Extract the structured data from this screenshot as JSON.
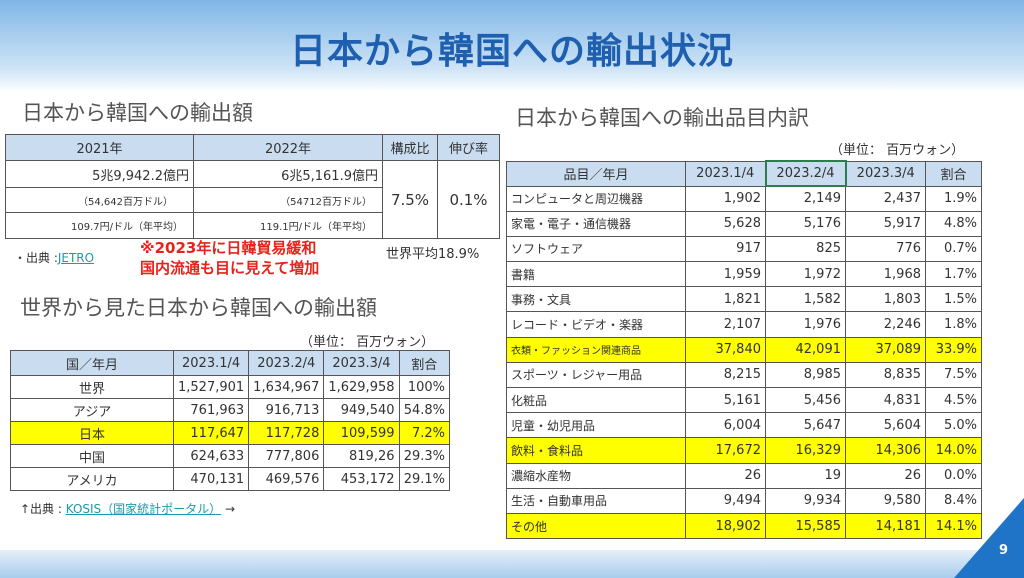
{
  "title": "日本から韓国への輸出状況",
  "page_number": "9",
  "colors": {
    "title": "#1f5fb0",
    "highlight": "#ffff00",
    "header": "#c9dcf0",
    "note": "#e8221b"
  },
  "export_amount": {
    "heading": "日本から韓国への輸出額",
    "headers": [
      "2021年",
      "2022年",
      "構成比",
      "伸び率"
    ],
    "rows": [
      [
        "5兆9,942.2億円",
        "6兆5,161.9億円"
      ],
      [
        "（54,642百万ドル）",
        "（54712百万ドル）"
      ],
      [
        "109.7円/ドル（年平均）",
        "119.1円/ドル（年平均）"
      ]
    ],
    "composition": "7.5%",
    "growth": "0.1%",
    "source_prefix": "・出典 :",
    "source_link": "JETRO",
    "world_average": "世界平均18.9%",
    "note_lines": [
      "※2023年に日韓貿易緩和",
      "国内流通も目に見えて増加"
    ]
  },
  "world_view": {
    "heading": "世界から見た日本から韓国への輸出額",
    "unit": "（単位： 百万ウォン）",
    "headers": [
      "国／年月",
      "2023.1/4",
      "2023.2/4",
      "2023.3/4",
      "割合"
    ],
    "rows": [
      {
        "cells": [
          "世界",
          "1,527,901",
          "1,634,967",
          "1,629,958",
          "100%"
        ]
      },
      {
        "cells": [
          "アジア",
          "761,963",
          "916,713",
          "949,540",
          "54.8%"
        ]
      },
      {
        "cells": [
          "日本",
          "117,647",
          "117,728",
          "109,599",
          "7.2%"
        ],
        "highlight": true
      },
      {
        "cells": [
          "中国",
          "624,633",
          "777,806",
          "819,26",
          "29.3%"
        ]
      },
      {
        "cells": [
          "アメリカ",
          "470,131",
          "469,576",
          "453,172",
          "29.1%"
        ]
      }
    ],
    "source_prefix": "↑出典 : ",
    "source_link": "KOSIS（国家統計ポータル）",
    "source_suffix": " →"
  },
  "items": {
    "heading": "日本から韓国への輸出品目内訳",
    "unit": "（単位： 百万ウォン）",
    "headers": [
      "品目／年月",
      "2023.1/4",
      "2023.2/4",
      "2023.3/4",
      "割合"
    ],
    "rows": [
      {
        "cells": [
          "コンピュータと周辺機器",
          "1,902",
          "2,149",
          "2,437",
          "1.9%"
        ]
      },
      {
        "cells": [
          "家電・電子・通信機器",
          "5,628",
          "5,176",
          "5,917",
          "4.8%"
        ]
      },
      {
        "cells": [
          "ソフトウェア",
          "917",
          "825",
          "776",
          "0.7%"
        ]
      },
      {
        "cells": [
          "書籍",
          "1,959",
          "1,972",
          "1,968",
          "1.7%"
        ]
      },
      {
        "cells": [
          "事務・文具",
          "1,821",
          "1,582",
          "1,803",
          "1.5%"
        ]
      },
      {
        "cells": [
          "レコード・ビデオ・楽器",
          "2,107",
          "1,976",
          "2,246",
          "1.8%"
        ]
      },
      {
        "cells": [
          "衣類・ファッション関連商品",
          "37,840",
          "42,091",
          "37,089",
          "33.9%"
        ],
        "highlight": true
      },
      {
        "cells": [
          "スポーツ・レジャー用品",
          "8,215",
          "8,985",
          "8,835",
          "7.5%"
        ]
      },
      {
        "cells": [
          "化粧品",
          "5,161",
          "5,456",
          "4,831",
          "4.5%"
        ]
      },
      {
        "cells": [
          "児童・幼児用品",
          "6,004",
          "5,647",
          "5,604",
          "5.0%"
        ]
      },
      {
        "cells": [
          "飲料・食料品",
          "17,672",
          "16,329",
          "14,306",
          "14.0%"
        ],
        "highlight": true
      },
      {
        "cells": [
          "濃縮水産物",
          "26",
          "19",
          "26",
          "0.0%"
        ]
      },
      {
        "cells": [
          "生活・自動車用品",
          "9,494",
          "9,934",
          "9,580",
          "8.4%"
        ]
      },
      {
        "cells": [
          "その他",
          "18,902",
          "15,585",
          "14,181",
          "14.1%"
        ],
        "highlight": true
      }
    ]
  }
}
